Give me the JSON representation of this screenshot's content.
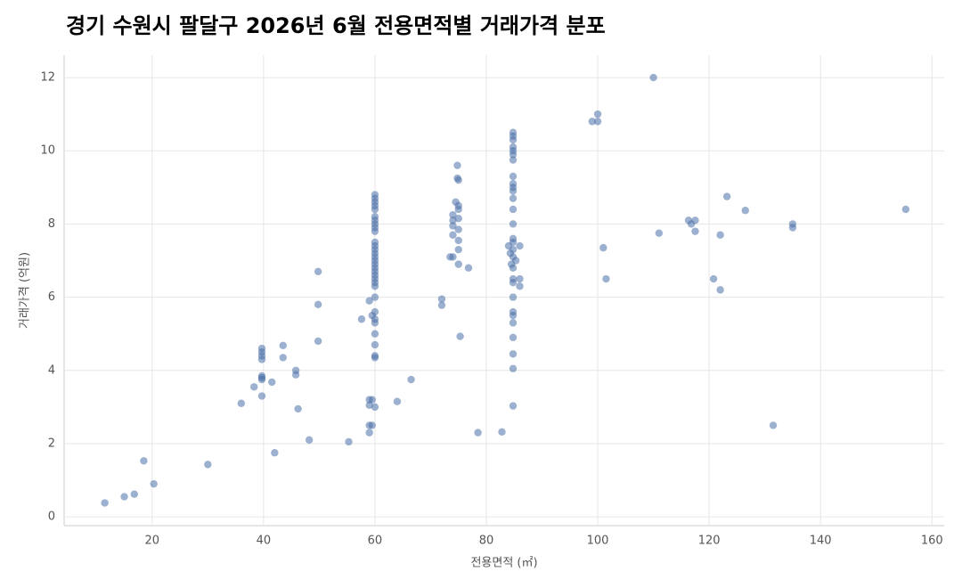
{
  "chart_data": {
    "type": "scatter",
    "title": "경기 수원시 팔달구 2026년 6월 전용면적별 거래가격 분포",
    "x_label": "전용면적 (㎡)",
    "y_label": "거래가격 (억원)",
    "color": "#4a70a8",
    "grid": true,
    "xlim": [
      4.2,
      162.2
    ],
    "ylim": [
      -0.24,
      12.61
    ],
    "xticks": [
      20,
      40,
      60,
      80,
      100,
      120,
      140,
      160
    ],
    "yticks": [
      0,
      2,
      4,
      6,
      8,
      10,
      12
    ],
    "x": [
      11.5,
      15,
      16.8,
      18.5,
      20.3,
      30,
      36,
      38.3,
      39.7,
      39.7,
      39.7,
      39.7,
      39.7,
      39.7,
      39.7,
      39.7,
      41.5,
      42,
      43.5,
      43.5,
      45.8,
      45.8,
      46.2,
      48.2,
      49.8,
      49.8,
      49.8,
      55.3,
      57.6,
      59,
      59,
      59,
      59,
      59,
      59.5,
      59.5,
      59.5,
      60,
      60,
      60,
      60,
      60,
      60,
      60,
      60,
      60,
      60,
      60,
      60,
      60,
      60,
      60,
      60,
      60,
      60,
      60,
      60,
      60,
      60,
      60,
      60,
      60,
      60,
      60,
      60,
      60,
      60,
      60,
      60,
      64,
      66.5,
      72,
      72,
      73.5,
      74,
      74,
      74,
      74,
      74,
      74.8,
      74.8,
      75,
      74.5,
      75,
      75,
      75,
      75,
      75,
      75,
      75,
      75.3,
      76.8,
      78.5,
      82.8,
      84,
      84.3,
      84.5,
      84.8,
      84.8,
      84.8,
      84.8,
      84.8,
      84.8,
      84.8,
      84.8,
      84.8,
      84.8,
      84.8,
      84.8,
      84.8,
      84.8,
      84.8,
      84.8,
      84.8,
      84.8,
      84.8,
      84.8,
      84.8,
      84.8,
      84.8,
      84.8,
      84.8,
      84.8,
      84.8,
      84.8,
      84.8,
      85.3,
      86,
      86,
      86,
      99,
      100,
      100,
      101,
      101.5,
      110,
      111,
      116.3,
      116.8,
      117.5,
      117.5,
      120.8,
      122,
      122,
      123.2,
      126.5,
      131.5,
      135,
      135,
      155.3
    ],
    "y": [
      0.38,
      0.55,
      0.62,
      1.53,
      0.9,
      1.43,
      3.1,
      3.55,
      4.6,
      4.5,
      4.4,
      4.3,
      3.85,
      3.75,
      3.8,
      3.3,
      3.68,
      1.75,
      4.68,
      4.35,
      4.0,
      3.88,
      2.95,
      2.1,
      6.7,
      5.8,
      4.8,
      2.05,
      5.4,
      5.9,
      3.2,
      3.05,
      2.5,
      2.3,
      3.2,
      2.5,
      5.5,
      8.8,
      8.7,
      8.6,
      8.5,
      8.4,
      8.2,
      8.1,
      8.0,
      7.9,
      7.8,
      7.5,
      7.4,
      7.3,
      7.2,
      7.1,
      7.0,
      6.9,
      6.8,
      6.7,
      6.6,
      6.5,
      6.4,
      6.3,
      6.0,
      5.6,
      5.4,
      5.3,
      5.0,
      4.7,
      4.4,
      4.35,
      3.0,
      3.15,
      3.75,
      5.95,
      5.78,
      7.1,
      8.25,
      8.1,
      7.95,
      7.7,
      7.1,
      9.6,
      9.25,
      9.2,
      8.6,
      8.5,
      8.4,
      8.15,
      7.85,
      7.55,
      7.3,
      6.9,
      4.93,
      6.8,
      2.3,
      2.32,
      7.4,
      7.2,
      6.9,
      10.5,
      10.4,
      10.3,
      10.1,
      10.0,
      9.9,
      9.75,
      9.3,
      9.1,
      9.0,
      8.9,
      8.7,
      8.4,
      8.0,
      7.6,
      7.5,
      7.3,
      7.1,
      6.8,
      6.5,
      6.4,
      6.0,
      5.6,
      5.5,
      5.3,
      4.9,
      4.45,
      4.05,
      3.03,
      7.0,
      7.4,
      6.5,
      6.3,
      10.8,
      11.0,
      10.8,
      7.35,
      6.5,
      12.0,
      7.75,
      8.1,
      8.0,
      8.1,
      7.8,
      6.5,
      6.2,
      7.7,
      8.75,
      8.37,
      2.5,
      8.0,
      7.9,
      8.4
    ]
  }
}
